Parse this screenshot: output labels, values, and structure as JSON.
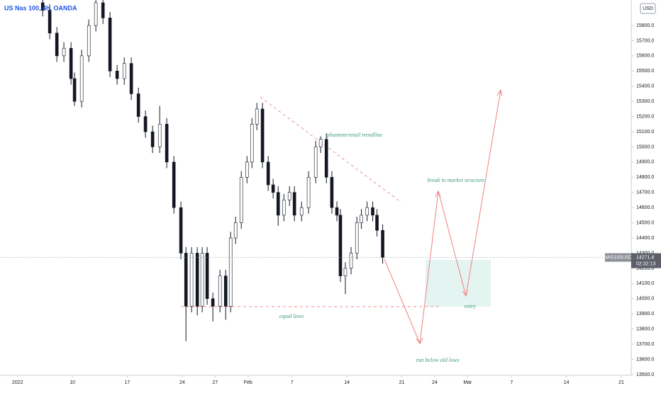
{
  "chart_data": {
    "type": "candlestick",
    "title": "US Nas 100, 4h, OANDA",
    "currency": "USD",
    "symbol": "NAS100USD",
    "last_price": 14271.4,
    "countdown": "02:32:13",
    "up_color": "#ffffff",
    "down_color": "#131722",
    "outline_color": "#131722",
    "grid": false,
    "xlim": [
      -1.6,
      55.9
    ],
    "ylim": [
      13495,
      15968
    ],
    "xticks": [
      {
        "value": 0,
        "label": "2022"
      },
      {
        "value": 5,
        "label": "10"
      },
      {
        "value": 10,
        "label": "17"
      },
      {
        "value": 15,
        "label": "24"
      },
      {
        "value": 18,
        "label": "27"
      },
      {
        "value": 21,
        "label": "Feb"
      },
      {
        "value": 25,
        "label": "7"
      },
      {
        "value": 30,
        "label": "14"
      },
      {
        "value": 35,
        "label": "21"
      },
      {
        "value": 38,
        "label": "24"
      },
      {
        "value": 41,
        "label": "Mar"
      },
      {
        "value": 45,
        "label": "7"
      },
      {
        "value": 50,
        "label": "14"
      },
      {
        "value": 55,
        "label": "21"
      }
    ],
    "yticks": [
      {
        "value": 13500,
        "label": "13500.0"
      },
      {
        "value": 13600,
        "label": "13600.0"
      },
      {
        "value": 13700,
        "label": "13700.0"
      },
      {
        "value": 13800,
        "label": "13800.0"
      },
      {
        "value": 13900,
        "label": "13900.0"
      },
      {
        "value": 14000,
        "label": "14000.0"
      },
      {
        "value": 14100,
        "label": "14100.0"
      },
      {
        "value": 14200,
        "label": "14200.0"
      },
      {
        "value": 14300,
        "label": "14300.0"
      },
      {
        "value": 14400,
        "label": "14400.0"
      },
      {
        "value": 14500,
        "label": "14500.0"
      },
      {
        "value": 14600,
        "label": "14600.0"
      },
      {
        "value": 14700,
        "label": "14700.0"
      },
      {
        "value": 14800,
        "label": "14800.0"
      },
      {
        "value": 14900,
        "label": "14900.0"
      },
      {
        "value": 15000,
        "label": "15000.0"
      },
      {
        "value": 15100,
        "label": "15100.0"
      },
      {
        "value": 15200,
        "label": "15200.0"
      },
      {
        "value": 15300,
        "label": "15300.0"
      },
      {
        "value": 15400,
        "label": "15400.0"
      },
      {
        "value": 15500,
        "label": "15500.0"
      },
      {
        "value": 15600,
        "label": "15600.0"
      },
      {
        "value": 15700,
        "label": "15700.0"
      },
      {
        "value": 15800,
        "label": "15800.0"
      }
    ],
    "x": [
      2.29,
      2.93,
      3.58,
      4.22,
      4.87,
      5.19,
      5.84,
      6.49,
      7.13,
      7.78,
      8.42,
      9.07,
      9.72,
      10.36,
      11.01,
      11.65,
      12.3,
      12.95,
      13.59,
      14.24,
      14.88,
      15.34,
      15.85,
      16.37,
      16.82,
      17.27,
      17.79,
      18.44,
      18.96,
      19.41,
      19.86,
      20.38,
      20.9,
      21.35,
      21.8,
      22.31,
      22.83,
      23.28,
      23.74,
      24.26,
      24.77,
      25.22,
      25.87,
      26.51,
      27.16,
      27.61,
      28.13,
      28.63,
      29.09,
      29.41,
      29.86,
      30.38,
      30.91,
      31.32,
      31.84,
      32.35,
      32.74,
      33.26
    ],
    "open": [
      15950,
      15900,
      15750,
      15600,
      15650,
      15450,
      15300,
      15600,
      15800,
      15950,
      15850,
      15500,
      15450,
      15550,
      15350,
      15200,
      15100,
      15000,
      15150,
      14900,
      14600,
      14300,
      13950,
      14300,
      13950,
      14300,
      14000,
      13950,
      14150,
      13950,
      14400,
      14500,
      14800,
      14900,
      15150,
      15250,
      14900,
      14750,
      14700,
      14550,
      14650,
      14700,
      14550,
      14600,
      14800,
      15000,
      15050,
      14800,
      14600,
      14550,
      14150,
      14200,
      14300,
      14500,
      14550,
      14600,
      14550,
      14450
    ],
    "high": [
      15990,
      15940,
      15790,
      15690,
      15690,
      15490,
      15640,
      15840,
      15990,
      15990,
      15890,
      15540,
      15590,
      15590,
      15390,
      15240,
      15140,
      15270,
      15190,
      14940,
      14640,
      14340,
      14340,
      14340,
      14340,
      14340,
      14040,
      14190,
      14190,
      14440,
      14540,
      14840,
      14940,
      15190,
      15290,
      15290,
      14940,
      14790,
      14740,
      14690,
      14740,
      14740,
      14640,
      14840,
      15040,
      15070,
      15090,
      14840,
      14640,
      14590,
      14240,
      14340,
      14540,
      14590,
      14640,
      14640,
      14590,
      14490
    ],
    "low": [
      15860,
      15710,
      15560,
      15560,
      15410,
      15270,
      15260,
      15560,
      15760,
      15810,
      15460,
      15410,
      15410,
      15310,
      15160,
      15060,
      14960,
      14960,
      14860,
      14560,
      14260,
      13720,
      13910,
      13890,
      13910,
      13960,
      13850,
      13910,
      13860,
      13910,
      14360,
      14460,
      14760,
      14860,
      15110,
      14860,
      14710,
      14660,
      14480,
      14510,
      14610,
      14510,
      14510,
      14560,
      14760,
      14960,
      14760,
      14560,
      14510,
      14110,
      14030,
      14160,
      14260,
      14460,
      14510,
      14510,
      14410,
      14231
    ],
    "close": [
      15900,
      15750,
      15600,
      15650,
      15450,
      15300,
      15600,
      15800,
      15950,
      15850,
      15500,
      15450,
      15550,
      15350,
      15200,
      15100,
      15000,
      15150,
      14900,
      14600,
      14300,
      13950,
      14300,
      13950,
      14300,
      14000,
      13950,
      14150,
      13950,
      14400,
      14500,
      14800,
      14900,
      15150,
      15250,
      14900,
      14750,
      14700,
      14550,
      14650,
      14700,
      14550,
      14600,
      14800,
      15000,
      15050,
      14800,
      14600,
      14550,
      14150,
      14200,
      14300,
      14500,
      14550,
      14600,
      14550,
      14450,
      14271.4
    ],
    "annotations": [
      "phantom/retail trendline",
      "break in market structure",
      "equal lows",
      "entry",
      "run below old lows"
    ]
  }
}
